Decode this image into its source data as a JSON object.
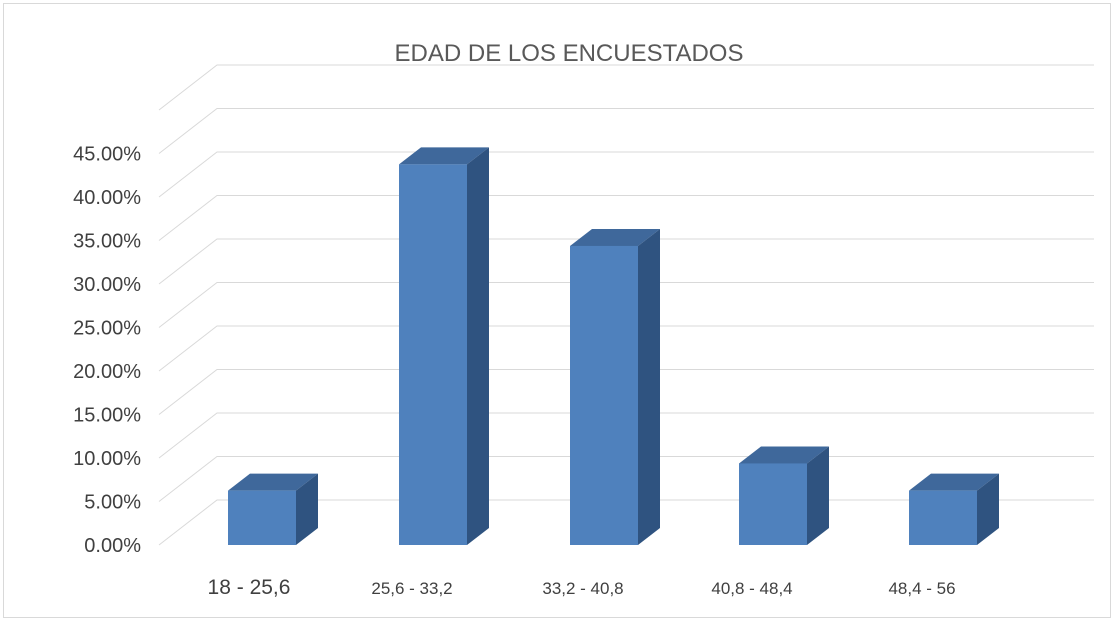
{
  "chart_data": {
    "type": "bar",
    "style": "3d-column",
    "title": "EDAD DE LOS ENCUESTADOS",
    "xlabel": "",
    "ylabel": "",
    "categories": [
      "18    -    25,6",
      "25,6 - 33,2",
      "33,2 - 40,8",
      "40,8 - 48,4",
      "48,4 - 56"
    ],
    "values": [
      6.25,
      43.75,
      34.375,
      9.375,
      6.25
    ],
    "value_unit": "%",
    "ylim": [
      0,
      45
    ],
    "y_ticks": [
      "0.00%",
      "5.00%",
      "10.00%",
      "15.00%",
      "20.00%",
      "25.00%",
      "30.00%",
      "35.00%",
      "40.00%",
      "45.00%"
    ],
    "grid": true,
    "legend": "none",
    "colors": {
      "bar_front": "#4f81bd",
      "bar_top": "#3f689b",
      "bar_side": "#2f5380",
      "grid": "#d9d9d9",
      "text": "#404040",
      "title": "#595959"
    }
  }
}
